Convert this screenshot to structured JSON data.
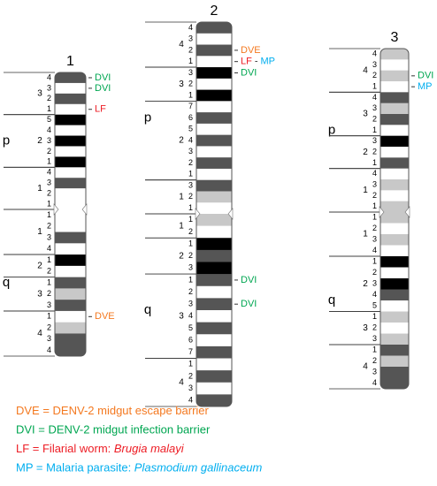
{
  "chromosomes": [
    {
      "label": "1",
      "arms": [
        {
          "label": "p",
          "regions": [
            {
              "label": "3",
              "bands": [
                {
                  "label": "4",
                  "color": "#555555",
                  "markers": [
                    {
                      "text": "DVI",
                      "color": "#00a651"
                    }
                  ]
                },
                {
                  "label": "3",
                  "color": "#ffffff",
                  "markers": [
                    {
                      "text": "DVI",
                      "color": "#00a651"
                    }
                  ]
                },
                {
                  "label": "2",
                  "color": "#555555"
                },
                {
                  "label": "1",
                  "color": "#ffffff",
                  "markers": [
                    {
                      "text": "LF",
                      "color": "#ed1c24"
                    }
                  ]
                }
              ]
            },
            {
              "label": "2",
              "bands": [
                {
                  "label": "5",
                  "color": "#000000"
                },
                {
                  "label": "4",
                  "color": "#ffffff"
                },
                {
                  "label": "3",
                  "color": "#000000"
                },
                {
                  "label": "2",
                  "color": "#ffffff"
                },
                {
                  "label": "1",
                  "color": "#000000"
                }
              ]
            },
            {
              "label": "1",
              "bands": [
                {
                  "label": "4",
                  "color": "#ffffff"
                },
                {
                  "label": "3",
                  "color": "#555555"
                },
                {
                  "label": "2",
                  "color": "#ffffff"
                },
                {
                  "label": "1",
                  "color": "#ffffff"
                }
              ]
            }
          ]
        },
        {
          "label": "q",
          "regions": [
            {
              "label": "1",
              "bands": [
                {
                  "label": "1",
                  "color": "#ffffff"
                },
                {
                  "label": "2",
                  "color": "#ffffff"
                },
                {
                  "label": "3",
                  "color": "#555555"
                },
                {
                  "label": "4",
                  "color": "#ffffff"
                }
              ]
            },
            {
              "label": "2",
              "bands": [
                {
                  "label": "1",
                  "color": "#000000"
                },
                {
                  "label": "2",
                  "color": "#ffffff"
                }
              ]
            },
            {
              "label": "3",
              "bands": [
                {
                  "label": "1",
                  "color": "#555555"
                },
                {
                  "label": "2",
                  "color": "#c8c8c8"
                },
                {
                  "label": "3",
                  "color": "#555555"
                }
              ]
            },
            {
              "label": "4",
              "bands": [
                {
                  "label": "1",
                  "color": "#ffffff",
                  "markers": [
                    {
                      "text": "DVE",
                      "color": "#f47920"
                    }
                  ]
                },
                {
                  "label": "2",
                  "color": "#c8c8c8"
                },
                {
                  "label": "3",
                  "color": "#555555"
                },
                {
                  "label": "4",
                  "color": "#555555"
                }
              ]
            }
          ]
        }
      ]
    },
    {
      "label": "2",
      "arms": [
        {
          "label": "p",
          "regions": [
            {
              "label": "4",
              "bands": [
                {
                  "label": "4",
                  "color": "#555555"
                },
                {
                  "label": "3",
                  "color": "#ffffff"
                },
                {
                  "label": "2",
                  "color": "#555555",
                  "markers": [
                    {
                      "text": "DVE",
                      "color": "#f47920"
                    }
                  ]
                },
                {
                  "label": "1",
                  "color": "#ffffff",
                  "markers": [
                    {
                      "text": "LF",
                      "color": "#ed1c24"
                    },
                    {
                      "text": "-",
                      "color": "#333333"
                    },
                    {
                      "text": "MP",
                      "color": "#00aeef"
                    }
                  ]
                }
              ]
            },
            {
              "label": "3",
              "bands": [
                {
                  "label": "3",
                  "color": "#000000",
                  "markers": [
                    {
                      "text": "DVI",
                      "color": "#00a651"
                    }
                  ]
                },
                {
                  "label": "2",
                  "color": "#ffffff"
                },
                {
                  "label": "1",
                  "color": "#000000"
                }
              ]
            },
            {
              "label": "2",
              "bands": [
                {
                  "label": "7",
                  "color": "#ffffff"
                },
                {
                  "label": "6",
                  "color": "#555555"
                },
                {
                  "label": "5",
                  "color": "#ffffff"
                },
                {
                  "label": "4",
                  "color": "#555555"
                },
                {
                  "label": "3",
                  "color": "#ffffff"
                },
                {
                  "label": "2",
                  "color": "#555555"
                },
                {
                  "label": "1",
                  "color": "#ffffff"
                }
              ]
            },
            {
              "label": "1",
              "bands": [
                {
                  "label": "3",
                  "color": "#555555"
                },
                {
                  "label": "2",
                  "color": "#c8c8c8"
                },
                {
                  "label": "1",
                  "color": "#ffffff"
                }
              ]
            }
          ]
        },
        {
          "label": "q",
          "regions": [
            {
              "label": "1",
              "bands": [
                {
                  "label": "1",
                  "color": "#c8c8c8"
                },
                {
                  "label": "2",
                  "color": "#ffffff"
                }
              ]
            },
            {
              "label": "2",
              "bands": [
                {
                  "label": "1",
                  "color": "#000000"
                },
                {
                  "label": "2",
                  "color": "#555555"
                },
                {
                  "label": "3",
                  "color": "#000000"
                }
              ]
            },
            {
              "label": "3",
              "bands": [
                {
                  "label": "1",
                  "color": "#555555",
                  "markers": [
                    {
                      "text": "DVI",
                      "color": "#00a651"
                    }
                  ]
                },
                {
                  "label": "2",
                  "color": "#ffffff"
                },
                {
                  "label": "3",
                  "color": "#555555",
                  "markers": [
                    {
                      "text": "DVI",
                      "color": "#00a651"
                    }
                  ]
                },
                {
                  "label": "4",
                  "color": "#ffffff"
                },
                {
                  "label": "5",
                  "color": "#555555"
                },
                {
                  "label": "6",
                  "color": "#ffffff"
                },
                {
                  "label": "7",
                  "color": "#555555"
                }
              ]
            },
            {
              "label": "4",
              "bands": [
                {
                  "label": "1",
                  "color": "#ffffff"
                },
                {
                  "label": "2",
                  "color": "#555555"
                },
                {
                  "label": "3",
                  "color": "#ffffff"
                },
                {
                  "label": "4",
                  "color": "#555555"
                }
              ]
            }
          ]
        }
      ]
    },
    {
      "label": "3",
      "arms": [
        {
          "label": "p",
          "regions": [
            {
              "label": "4",
              "bands": [
                {
                  "label": "4",
                  "color": "#c8c8c8"
                },
                {
                  "label": "3",
                  "color": "#ffffff"
                },
                {
                  "label": "2",
                  "color": "#c8c8c8",
                  "markers": [
                    {
                      "text": "DVI",
                      "color": "#00a651"
                    }
                  ]
                },
                {
                  "label": "1",
                  "color": "#ffffff",
                  "markers": [
                    {
                      "text": "MP",
                      "color": "#00aeef"
                    }
                  ]
                }
              ]
            },
            {
              "label": "3",
              "bands": [
                {
                  "label": "4",
                  "color": "#555555"
                },
                {
                  "label": "3",
                  "color": "#c8c8c8"
                },
                {
                  "label": "2",
                  "color": "#555555"
                },
                {
                  "label": "1",
                  "color": "#ffffff"
                }
              ]
            },
            {
              "label": "2",
              "bands": [
                {
                  "label": "3",
                  "color": "#000000"
                },
                {
                  "label": "2",
                  "color": "#ffffff"
                },
                {
                  "label": "1",
                  "color": "#555555"
                }
              ]
            },
            {
              "label": "1",
              "bands": [
                {
                  "label": "4",
                  "color": "#ffffff"
                },
                {
                  "label": "3",
                  "color": "#c8c8c8"
                },
                {
                  "label": "2",
                  "color": "#ffffff"
                },
                {
                  "label": "1",
                  "color": "#c8c8c8"
                }
              ]
            }
          ]
        },
        {
          "label": "q",
          "regions": [
            {
              "label": "1",
              "bands": [
                {
                  "label": "1",
                  "color": "#c8c8c8"
                },
                {
                  "label": "2",
                  "color": "#ffffff"
                },
                {
                  "label": "3",
                  "color": "#c8c8c8"
                },
                {
                  "label": "4",
                  "color": "#ffffff"
                }
              ]
            },
            {
              "label": "2",
              "bands": [
                {
                  "label": "1",
                  "color": "#000000"
                },
                {
                  "label": "2",
                  "color": "#ffffff"
                },
                {
                  "label": "3",
                  "color": "#000000"
                },
                {
                  "label": "4",
                  "color": "#555555"
                },
                {
                  "label": "5",
                  "color": "#ffffff"
                }
              ]
            },
            {
              "label": "3",
              "bands": [
                {
                  "label": "1",
                  "color": "#c8c8c8"
                },
                {
                  "label": "2",
                  "color": "#ffffff"
                },
                {
                  "label": "3",
                  "color": "#c8c8c8"
                }
              ]
            },
            {
              "label": "4",
              "bands": [
                {
                  "label": "1",
                  "color": "#555555"
                },
                {
                  "label": "2",
                  "color": "#c8c8c8"
                },
                {
                  "label": "3",
                  "color": "#555555"
                },
                {
                  "label": "4",
                  "color": "#555555"
                }
              ]
            }
          ]
        }
      ]
    }
  ],
  "legend": [
    {
      "color": "#f47920",
      "parts": [
        {
          "text": "DVE = DENV-2 midgut escape barrier"
        }
      ]
    },
    {
      "color": "#00a651",
      "parts": [
        {
          "text": "DVI = DENV-2 midgut infection barrier"
        }
      ]
    },
    {
      "color": "#ed1c24",
      "parts": [
        {
          "text": "LF = Filarial worm: "
        },
        {
          "text": "Brugia malayi",
          "italic": true
        }
      ]
    },
    {
      "color": "#00aeef",
      "parts": [
        {
          "text": "MP = Malaria parasite: "
        },
        {
          "text": "Plasmodium gallinaceum",
          "italic": true
        }
      ]
    }
  ]
}
